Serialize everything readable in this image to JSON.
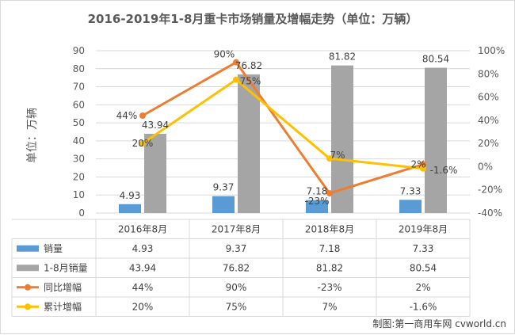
{
  "chart_data": {
    "type": "bar",
    "title": "2016-2019年1-8月重卡市场销量及增幅走势（单位：万辆）",
    "ylabel": "单位：万辆",
    "categories": [
      "2016年8月",
      "2017年8月",
      "2018年8月",
      "2019年8月"
    ],
    "ylim": [
      0,
      90
    ],
    "yticks": [
      0,
      10,
      20,
      30,
      40,
      50,
      60,
      70,
      80,
      90
    ],
    "y2lim": [
      -40,
      100
    ],
    "y2ticks": [
      "-40%",
      "-20%",
      "0%",
      "20%",
      "40%",
      "60%",
      "80%",
      "100%"
    ],
    "series": [
      {
        "name": "销量",
        "type": "bar",
        "axis": "left",
        "color": "#5b9bd5",
        "values": [
          4.93,
          9.37,
          7.18,
          7.33
        ],
        "labels": [
          "4.93",
          "9.37",
          "7.18",
          "7.33"
        ]
      },
      {
        "name": "1-8月销量",
        "type": "bar",
        "axis": "left",
        "color": "#a5a5a5",
        "values": [
          43.94,
          76.82,
          81.82,
          80.54
        ],
        "labels": [
          "43.94",
          "76.82",
          "81.82",
          "80.54"
        ]
      },
      {
        "name": "同比增幅",
        "type": "line",
        "axis": "right",
        "color": "#ed7d31",
        "values": [
          44,
          90,
          -23,
          2
        ],
        "labels": [
          "44%",
          "90%",
          "-23%",
          "2%"
        ]
      },
      {
        "name": "累计增幅",
        "type": "line",
        "axis": "right",
        "color": "#ffc000",
        "values": [
          20,
          75,
          7,
          -1.6
        ],
        "labels": [
          "20%",
          "75%",
          "7%",
          "-1.6%"
        ]
      }
    ],
    "grid": true,
    "legend": "data-table"
  },
  "credit": "制图:第一商用车网 cvworld.cn"
}
